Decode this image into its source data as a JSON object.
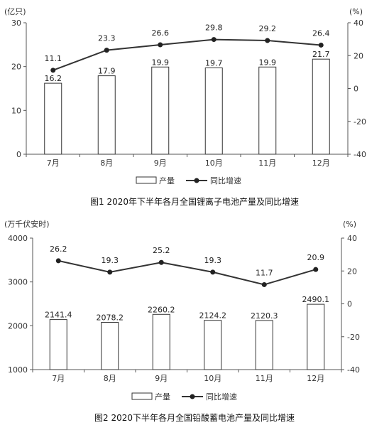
{
  "chart_data": [
    {
      "type": "bar+line",
      "caption": "图1  2020年下半年各月全国锂离子电池产量及同比增速",
      "categories": [
        "7月",
        "8月",
        "9月",
        "10月",
        "11月",
        "12月"
      ],
      "series": [
        {
          "name": "产量",
          "type": "bar",
          "axis": "left",
          "values": [
            16.2,
            17.9,
            19.9,
            19.7,
            19.9,
            21.7
          ]
        },
        {
          "name": "同比增速",
          "type": "line",
          "axis": "right",
          "values": [
            11.1,
            23.3,
            26.6,
            29.8,
            29.2,
            26.4
          ]
        }
      ],
      "left_unit": "(亿只)",
      "right_unit": "(%)",
      "ylim_left": [
        0,
        30
      ],
      "left_ticks": [
        0,
        10,
        20,
        30
      ],
      "ylim_right": [
        -40,
        40
      ],
      "right_ticks": [
        -40,
        -20,
        0,
        20,
        40
      ],
      "legend_placement": "bottom",
      "grid": false
    },
    {
      "type": "bar+line",
      "caption": "图2  2020下半年各月全国铅酸蓄电池产量及同比增速",
      "categories": [
        "7月",
        "8月",
        "9月",
        "10月",
        "11月",
        "12月"
      ],
      "series": [
        {
          "name": "产量",
          "type": "bar",
          "axis": "left",
          "values": [
            2141.4,
            2078.2,
            2260.2,
            2124.2,
            2120.3,
            2490.1
          ]
        },
        {
          "name": "同比增速",
          "type": "line",
          "axis": "right",
          "values": [
            26.2,
            19.3,
            25.2,
            19.3,
            11.7,
            20.9
          ]
        }
      ],
      "left_unit": "(万千伏安时)",
      "right_unit": "(%)",
      "ylim_left": [
        1000,
        4000
      ],
      "left_ticks": [
        1000,
        2000,
        3000,
        4000
      ],
      "ylim_right": [
        -40,
        40
      ],
      "right_ticks": [
        -40,
        -20,
        0,
        20,
        40
      ],
      "legend_placement": "bottom",
      "grid": false
    }
  ],
  "colors": {
    "axis": "#555555",
    "bar_stroke": "#333333",
    "bar_fill": "#ffffff",
    "line": "#333333",
    "point": "#222222"
  }
}
